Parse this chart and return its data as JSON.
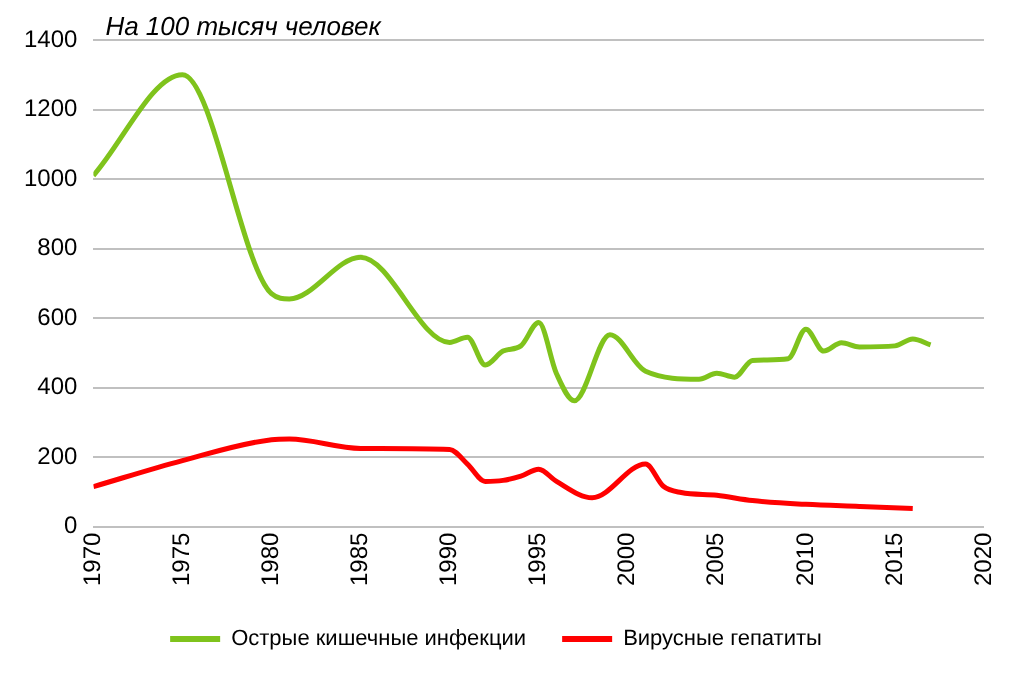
{
  "chart_data": {
    "type": "line",
    "title": "На 100 тысяч человек",
    "xlim": [
      1970,
      2020
    ],
    "xticks": [
      1970,
      1975,
      1980,
      1985,
      1990,
      1995,
      2000,
      2005,
      2010,
      2015,
      2020
    ],
    "ylim": [
      0,
      1400
    ],
    "yticks": [
      0,
      200,
      400,
      600,
      800,
      1000,
      1200,
      1400
    ],
    "grid": "y",
    "legend": "bottom",
    "marker": "none",
    "line_style": "solid",
    "series": [
      {
        "name": "Острые кишечные инфекции",
        "color": "#7fc31c",
        "x": [
          1970,
          1975,
          1980,
          1981,
          1985,
          1990,
          1991,
          1992,
          1993,
          1994,
          1995,
          1996,
          1997,
          1999,
          2001,
          2004,
          2005,
          2006,
          2007,
          2009,
          2010,
          2011,
          2012,
          2013,
          2015,
          2016,
          2017
        ],
        "values": [
          1010,
          1300,
          670,
          655,
          775,
          530,
          545,
          465,
          505,
          520,
          587,
          440,
          362,
          552,
          447,
          424,
          441,
          430,
          478,
          483,
          568,
          505,
          529,
          517,
          520,
          540,
          523
        ]
      },
      {
        "name": "Вирусные гепатиты",
        "color": "#ff0000",
        "x": [
          1970,
          1975,
          1980,
          1981,
          1985,
          1990,
          1991,
          1992,
          1993,
          1994,
          1995,
          1996,
          1998,
          2001,
          2002,
          2003,
          2005,
          2007,
          2010,
          2013,
          2016
        ],
        "values": [
          115,
          190,
          250,
          252,
          225,
          222,
          180,
          130,
          133,
          145,
          165,
          130,
          83,
          180,
          116,
          98,
          90,
          75,
          64,
          58,
          52
        ]
      }
    ]
  }
}
